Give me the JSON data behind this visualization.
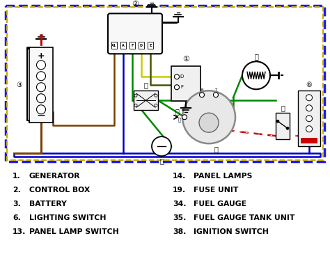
{
  "bg_color": "#ffffff",
  "border_color_outer": "#1a1aff",
  "border_color_inner": "#ccaa00",
  "legend_left": [
    [
      "1.",
      "GENERATOR"
    ],
    [
      "2.",
      "CONTROL BOX"
    ],
    [
      "3.",
      "BATTERY"
    ],
    [
      "6.",
      "LIGHTING SWITCH"
    ],
    [
      "13.",
      "PANEL LAMP SWITCH"
    ]
  ],
  "legend_right": [
    [
      "14.",
      "PANEL LAMPS"
    ],
    [
      "19.",
      "FUSE UNIT"
    ],
    [
      "34.",
      "FUEL GAUGE"
    ],
    [
      "35.",
      "FUEL GAUGE TANK UNIT"
    ],
    [
      "38.",
      "IGNITION SWITCH"
    ]
  ]
}
